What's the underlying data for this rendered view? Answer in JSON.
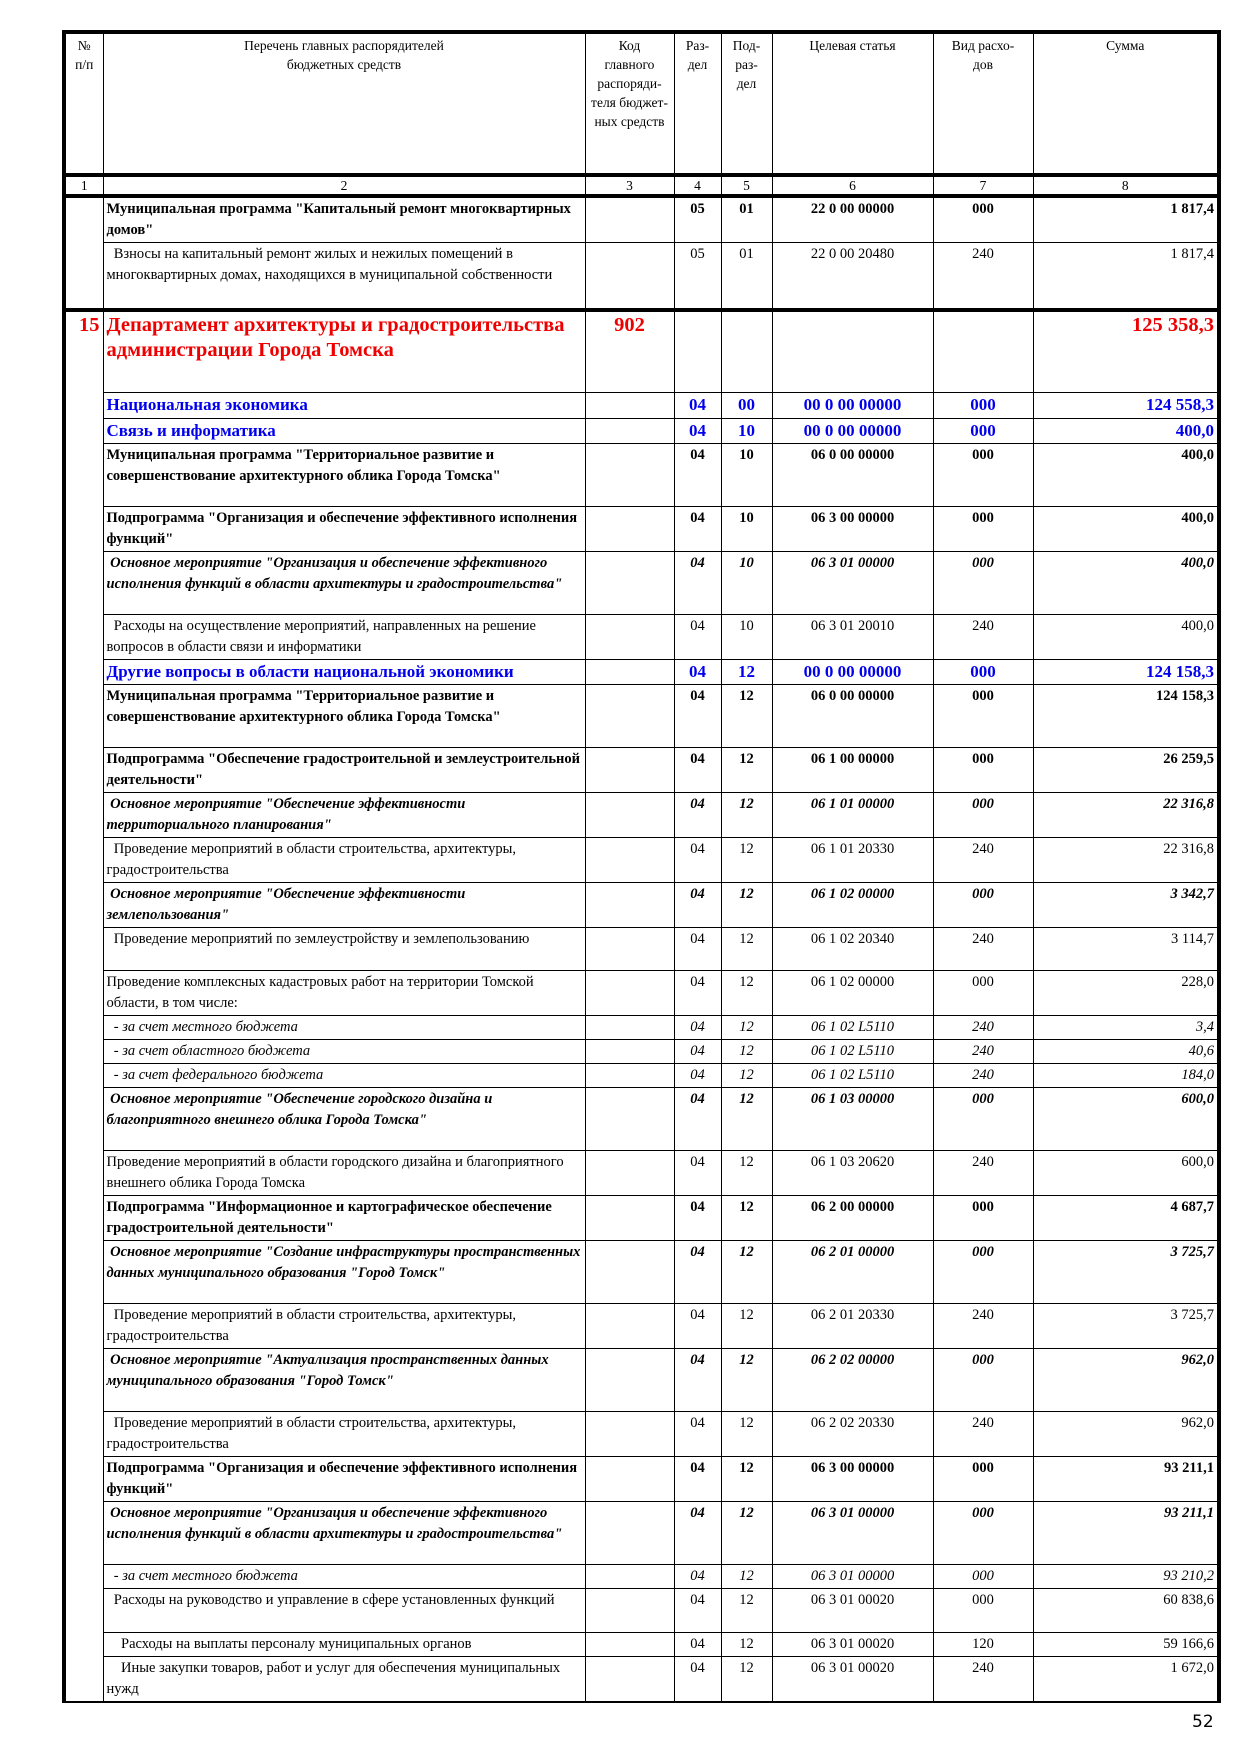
{
  "header": {
    "columns": [
      "№\nп/п",
      "Перечень главных распорядителей\nбюджетных средств",
      "Код\nглавного\nраспоряди-\nтеля бюджет-\nных средств",
      "Раз-\nдел",
      "Под-\nраз-\nдел",
      "Целевая статья",
      "Вид расхо-\nдов",
      "Сумма"
    ],
    "numbers": [
      "1",
      "2",
      "3",
      "4",
      "5",
      "6",
      "7",
      "8"
    ]
  },
  "rows": [
    {
      "style": "prog",
      "h": 42,
      "num": "",
      "name": "Муниципальная программа \"Капитальный ремонт многоквартирных домов\"",
      "code": "",
      "rz": "05",
      "prz": "01",
      "cs": "22 0 00 00000",
      "vr": "000",
      "sum": "1 817,4"
    },
    {
      "style": "norm",
      "h": 65,
      "num": "",
      "name": "  Взносы на капитальный ремонт жилых и нежилых помещений в многоквартирных домах, находящихся в муниципальной собственности",
      "code": "",
      "rz": "05",
      "prz": "01",
      "cs": "22 0 00 20480",
      "vr": "240",
      "sum": "1 817,4"
    },
    {
      "style": "red",
      "h": 80,
      "num": "15",
      "name": "Департамент архитектуры и градостроительства администрации Города Томска",
      "code": "902",
      "rz": "",
      "prz": "",
      "cs": "",
      "vr": "",
      "sum": "125 358,3"
    },
    {
      "style": "blue",
      "h": 25,
      "num": "",
      "name": "Национальная экономика",
      "code": "",
      "rz": "04",
      "prz": "00",
      "cs": "00 0 00 00000",
      "vr": "000",
      "sum": "124 558,3"
    },
    {
      "style": "blue",
      "h": 20,
      "num": "",
      "name": "Связь и информатика",
      "code": "",
      "rz": "04",
      "prz": "10",
      "cs": "00 0 00 00000",
      "vr": "000",
      "sum": "400,0"
    },
    {
      "style": "prog",
      "h": 62,
      "num": "",
      "name": "Муниципальная программа \"Территориальное развитие и совершенствование архитектурного облика Города Томска\"",
      "code": "",
      "rz": "04",
      "prz": "10",
      "cs": "06 0 00 00000",
      "vr": "000",
      "sum": "400,0"
    },
    {
      "style": "prog",
      "h": 42,
      "num": "",
      "name": "Подпрограмма \"Организация и обеспечение эффективного исполнения функций\"",
      "code": "",
      "rz": "04",
      "prz": "10",
      "cs": "06 3 00 00000",
      "vr": "000",
      "sum": "400,0"
    },
    {
      "style": "main",
      "h": 62,
      "num": "",
      "name": " Основное мероприятие \"Организация и обеспечение эффективного исполнения функций в области архитектуры и градостроительства\"",
      "code": "",
      "rz": "04",
      "prz": "10",
      "cs": "06 3 01 00000",
      "vr": "000",
      "sum": "400,0"
    },
    {
      "style": "norm",
      "h": 42,
      "num": "",
      "name": "  Расходы на осуществление мероприятий, направленных на решение вопросов в области связи и информатики",
      "code": "",
      "rz": "04",
      "prz": "10",
      "cs": "06 3 01 20010",
      "vr": "240",
      "sum": "400,0"
    },
    {
      "style": "blue",
      "h": 20,
      "num": "",
      "name": "Другие вопросы в области национальной экономики",
      "code": "",
      "rz": "04",
      "prz": "12",
      "cs": "00 0 00 00000",
      "vr": "000",
      "sum": "124 158,3"
    },
    {
      "style": "prog",
      "h": 62,
      "num": "",
      "name": "Муниципальная программа \"Территориальное развитие и совершенствование архитектурного облика Города Томска\"",
      "code": "",
      "rz": "04",
      "prz": "12",
      "cs": "06 0 00 00000",
      "vr": "000",
      "sum": "124 158,3"
    },
    {
      "style": "prog",
      "h": 41,
      "num": "",
      "name": "Подпрограмма \"Обеспечение градостроительной и землеустроительной деятельности\"",
      "code": "",
      "rz": "04",
      "prz": "12",
      "cs": "06 1 00 00000",
      "vr": "000",
      "sum": "26 259,5"
    },
    {
      "style": "main",
      "h": 41,
      "num": "",
      "name": " Основное мероприятие \"Обеспечение эффективности территориального планирования\"",
      "code": "",
      "rz": "04",
      "prz": "12",
      "cs": "06 1 01 00000",
      "vr": "000",
      "sum": "22 316,8"
    },
    {
      "style": "norm",
      "h": 42,
      "num": "",
      "name": "  Проведение мероприятий в области строительства, архитектуры, градостроительства",
      "code": "",
      "rz": "04",
      "prz": "12",
      "cs": "06 1 01 20330",
      "vr": "240",
      "sum": "22 316,8"
    },
    {
      "style": "main",
      "h": 41,
      "num": "",
      "name": " Основное мероприятие \"Обеспечение эффективности землепользования\"",
      "code": "",
      "rz": "04",
      "prz": "12",
      "cs": "06 1 02 00000",
      "vr": "000",
      "sum": "3 342,7"
    },
    {
      "style": "norm",
      "h": 42,
      "num": "",
      "name": "  Проведение мероприятий по землеустройству и землепользованию",
      "code": "",
      "rz": "04",
      "prz": "12",
      "cs": "06 1 02 20340",
      "vr": "240",
      "sum": "3 114,7"
    },
    {
      "style": "norm",
      "h": 42,
      "num": "",
      "name": "Проведение комплексных кадастровых работ на территории Томской области, в том числе:",
      "code": "",
      "rz": "04",
      "prz": "12",
      "cs": "06 1 02 00000",
      "vr": "000",
      "sum": "228,0"
    },
    {
      "style": "sub",
      "h": 20,
      "num": "",
      "name": "  - за счет местного бюджета",
      "code": "",
      "rz": "04",
      "prz": "12",
      "cs": "06 1 02 L5110",
      "vr": "240",
      "sum": "3,4"
    },
    {
      "style": "sub",
      "h": 20,
      "num": "",
      "name": "  - за счет областного бюджета",
      "code": "",
      "rz": "04",
      "prz": "12",
      "cs": "06 1 02 L5110",
      "vr": "240",
      "sum": "40,6"
    },
    {
      "style": "sub",
      "h": 20,
      "num": "",
      "name": "  - за счет федерального бюджета",
      "code": "",
      "rz": "04",
      "prz": "12",
      "cs": "06 1 02 L5110",
      "vr": "240",
      "sum": "184,0"
    },
    {
      "style": "main",
      "h": 62,
      "num": "",
      "name": " Основное мероприятие \"Обеспечение городского дизайна и благоприятного внешнего облика Города Томска\"",
      "code": "",
      "rz": "04",
      "prz": "12",
      "cs": "06 1 03 00000",
      "vr": "000",
      "sum": "600,0"
    },
    {
      "style": "norm",
      "h": 42,
      "num": "",
      "name": "Проведение мероприятий в области городского дизайна и благоприятного внешнего облика Города Томска",
      "code": "",
      "rz": "04",
      "prz": "12",
      "cs": "06 1 03 20620",
      "vr": "240",
      "sum": "600,0"
    },
    {
      "style": "prog",
      "h": 42,
      "num": "",
      "name": "Подпрограмма \"Информационное и картографическое обеспечение градостроительной деятельности\"",
      "code": "",
      "rz": "04",
      "prz": "12",
      "cs": "06 2 00 00000",
      "vr": "000",
      "sum": "4 687,7"
    },
    {
      "style": "main",
      "h": 62,
      "num": "",
      "name": " Основное мероприятие \"Создание инфраструктуры пространственных данных муниципального образования \"Город Томск\"",
      "code": "",
      "rz": "04",
      "prz": "12",
      "cs": "06 2 01 00000",
      "vr": "000",
      "sum": "3 725,7"
    },
    {
      "style": "norm",
      "h": 41,
      "num": "",
      "name": "  Проведение мероприятий в области строительства, архитектуры, градостроительства",
      "code": "",
      "rz": "04",
      "prz": "12",
      "cs": "06 2 01 20330",
      "vr": "240",
      "sum": "3 725,7"
    },
    {
      "style": "main",
      "h": 62,
      "num": "",
      "name": " Основное мероприятие \"Актуализация пространственных данных муниципального образования \"Город Томск\"",
      "code": "",
      "rz": "04",
      "prz": "12",
      "cs": "06 2 02 00000",
      "vr": "000",
      "sum": "962,0"
    },
    {
      "style": "norm",
      "h": 42,
      "num": "",
      "name": "  Проведение мероприятий в области строительства, архитектуры, градостроительства",
      "code": "",
      "rz": "04",
      "prz": "12",
      "cs": "06 2 02 20330",
      "vr": "240",
      "sum": "962,0"
    },
    {
      "style": "prog",
      "h": 41,
      "num": "",
      "name": "Подпрограмма \"Организация и обеспечение эффективного исполнения функций\"",
      "code": "",
      "rz": "04",
      "prz": "12",
      "cs": "06 3 00 00000",
      "vr": "000",
      "sum": "93 211,1"
    },
    {
      "style": "main",
      "h": 62,
      "num": "",
      "name": " Основное мероприятие \"Организация и обеспечение эффективного исполнения функций в области архитектуры и градостроительства\"",
      "code": "",
      "rz": "04",
      "prz": "12",
      "cs": "06 3 01 00000",
      "vr": "000",
      "sum": "93 211,1"
    },
    {
      "style": "sub",
      "h": 19,
      "num": "",
      "name": "  - за счет местного бюджета",
      "code": "",
      "rz": "04",
      "prz": "12",
      "cs": "06 3 01 00000",
      "vr": "000",
      "sum": "93 210,2"
    },
    {
      "style": "norm",
      "h": 43,
      "num": "",
      "name": "  Расходы на руководство и управление в сфере установленных функций",
      "code": "",
      "rz": "04",
      "prz": "12",
      "cs": "06 3 01 00020",
      "vr": "000",
      "sum": "60 838,6"
    },
    {
      "style": "norm",
      "h": 19,
      "num": "",
      "name": "    Расходы на выплаты персоналу муниципальных органов",
      "code": "",
      "rz": "04",
      "prz": "12",
      "cs": "06 3 01 00020",
      "vr": "120",
      "sum": "59 166,6"
    },
    {
      "style": "norm",
      "h": 42,
      "num": "",
      "name": "    Иные закупки товаров, работ и услуг для обеспечения муниципальных нужд",
      "code": "",
      "rz": "04",
      "prz": "12",
      "cs": "06 3 01 00020",
      "vr": "240",
      "sum": "1 672,0"
    }
  ],
  "page_number": "52",
  "colors": {
    "department": "#ee0000",
    "section": "#0000ee",
    "text": "#000000"
  }
}
